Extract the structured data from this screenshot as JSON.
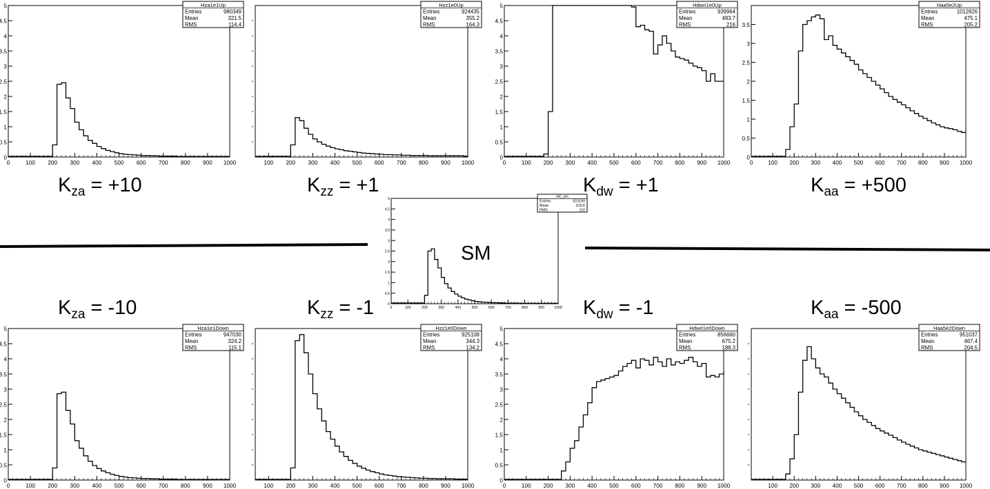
{
  "labels": {
    "up": [
      {
        "k": "K",
        "sub": "za",
        "rest": " = +10"
      },
      {
        "k": "K",
        "sub": "zz",
        "rest": " = +1"
      },
      {
        "k": "K",
        "sub": "dw",
        "rest": " = +1"
      },
      {
        "k": "K",
        "sub": "aa",
        "rest": " = +500"
      }
    ],
    "down": [
      {
        "k": "K",
        "sub": "za",
        "rest": " = -10"
      },
      {
        "k": "K",
        "sub": "zz",
        "rest": " = -1"
      },
      {
        "k": "K",
        "sub": "dw",
        "rest": " = -1"
      },
      {
        "k": "K",
        "sub": "aa",
        "rest": " = -500"
      }
    ],
    "sm": "SM"
  },
  "chart_data": [
    {
      "type": "bar",
      "title": "Hza1e1Up",
      "stats": {
        "Entries": "980349",
        "Mean": "321.5",
        "RMS": "114.4"
      },
      "xlim": [
        0,
        1000
      ],
      "ylim": [
        0,
        5
      ],
      "xticks": [
        0,
        100,
        200,
        300,
        400,
        500,
        600,
        700,
        800,
        900,
        1000
      ],
      "yticks": [
        0,
        0.5,
        1,
        1.5,
        2,
        2.5,
        3,
        3.5,
        4,
        4.5,
        5
      ],
      "bin_edges_start": 200,
      "bin_width": 20,
      "values": [
        0.4,
        2.4,
        2.45,
        1.95,
        1.6,
        1.15,
        0.9,
        0.7,
        0.55,
        0.45,
        0.35,
        0.28,
        0.22,
        0.18,
        0.14,
        0.11,
        0.09,
        0.08,
        0.07,
        0.06,
        0.05,
        0.05,
        0.04,
        0.04,
        0.03,
        0.03,
        0.03,
        0.03,
        0.02,
        0.02,
        0.02,
        0.02,
        0.02,
        0.02,
        0.02,
        0.02,
        0.02,
        0.02,
        0.02,
        0.02
      ]
    },
    {
      "type": "bar",
      "title": "Hzz1e0Up",
      "stats": {
        "Entries": "924435",
        "Mean": "355.2",
        "RMS": "164.3"
      },
      "xlim": [
        40,
        1000
      ],
      "ylim": [
        0,
        5
      ],
      "xticks": [
        100,
        200,
        300,
        400,
        500,
        600,
        700,
        800,
        900,
        1000
      ],
      "yticks": [],
      "bin_edges_start": 200,
      "bin_width": 20,
      "values": [
        0.4,
        1.3,
        1.2,
        0.95,
        0.75,
        0.6,
        0.5,
        0.42,
        0.36,
        0.31,
        0.27,
        0.24,
        0.21,
        0.19,
        0.17,
        0.15,
        0.13,
        0.12,
        0.11,
        0.1,
        0.09,
        0.08,
        0.08,
        0.07,
        0.07,
        0.06,
        0.06,
        0.05,
        0.05,
        0.05,
        0.05,
        0.04,
        0.04,
        0.04,
        0.04,
        0.04,
        0.04,
        0.04,
        0.04,
        0.03
      ]
    },
    {
      "type": "bar",
      "title": "Hdwri1e0Up",
      "stats": {
        "Entries": "939964",
        "Mean": "483.7",
        "RMS": "216"
      },
      "xlim": [
        0,
        1000
      ],
      "ylim": [
        0,
        5
      ],
      "xticks": [
        0,
        100,
        200,
        300,
        400,
        500,
        600,
        700,
        800,
        900,
        1000
      ],
      "yticks": [
        0,
        0.5,
        1,
        1.5,
        2,
        2.5,
        3,
        3.5,
        4,
        4.5,
        5
      ],
      "bin_edges_start": 180,
      "bin_width": 20,
      "values": [
        0.1,
        1.5,
        5.2,
        5.2,
        5.2,
        5.2,
        5.2,
        5.2,
        5.2,
        5.2,
        5.2,
        5.2,
        5.2,
        5.2,
        5.2,
        5.2,
        5.2,
        5.2,
        5.2,
        5.0,
        4.95,
        4.3,
        4.35,
        4.2,
        4.15,
        3.4,
        3.7,
        4.0,
        3.75,
        3.5,
        3.3,
        3.25,
        3.2,
        3.1,
        3.0,
        2.95,
        2.85,
        2.5,
        2.75,
        2.5,
        2.5
      ]
    },
    {
      "type": "bar",
      "title": "Haa5e2Up",
      "stats": {
        "Entries": "1012826",
        "Mean": "475.1",
        "RMS": "205.2"
      },
      "xlim": [
        0,
        1000
      ],
      "ylim": [
        0,
        4
      ],
      "xticks": [
        0,
        100,
        200,
        300,
        400,
        500,
        600,
        700,
        800,
        900,
        1000
      ],
      "yticks": [
        0,
        0.5,
        1,
        1.5,
        2,
        2.5,
        3,
        3.5
      ],
      "bin_edges_start": 160,
      "bin_width": 20,
      "values": [
        0.2,
        0.8,
        1.4,
        2.8,
        3.5,
        3.6,
        3.7,
        3.75,
        3.65,
        3.1,
        3.2,
        2.95,
        2.85,
        2.75,
        2.65,
        2.55,
        2.45,
        2.3,
        2.2,
        2.1,
        2.0,
        1.9,
        1.8,
        1.7,
        1.6,
        1.52,
        1.45,
        1.38,
        1.3,
        1.22,
        1.15,
        1.08,
        1.02,
        0.96,
        0.9,
        0.85,
        0.8,
        0.77,
        0.75,
        0.72,
        0.68,
        0.65
      ]
    },
    {
      "type": "bar",
      "title": "HC_sm",
      "stats": {
        "Entries": "923199",
        "Mean": "319.6",
        "RMS": "110"
      },
      "xlim": [
        0,
        1000
      ],
      "ylim": [
        0,
        5
      ],
      "xticks": [
        0,
        100,
        200,
        300,
        400,
        500,
        600,
        700,
        800,
        900,
        1000
      ],
      "yticks": [
        0,
        0.5,
        1,
        1.5,
        2,
        2.5,
        3,
        3.5,
        4,
        4.5,
        5
      ],
      "bin_edges_start": 200,
      "bin_width": 20,
      "values": [
        0.4,
        2.5,
        2.6,
        2.1,
        1.7,
        1.25,
        0.95,
        0.75,
        0.58,
        0.46,
        0.36,
        0.28,
        0.22,
        0.18,
        0.14,
        0.11,
        0.09,
        0.08,
        0.07,
        0.06,
        0.05,
        0.05,
        0.04,
        0.04,
        0.03,
        0.03,
        0.03,
        0.03,
        0.02,
        0.02,
        0.02,
        0.02,
        0.02,
        0.02,
        0.02,
        0.02,
        0.02,
        0.02,
        0.02,
        0.02
      ]
    },
    {
      "type": "bar",
      "title": "Hza1e1Down",
      "stats": {
        "Entries": "947030",
        "Mean": "324.2",
        "RMS": "115.1"
      },
      "xlim": [
        0,
        1000
      ],
      "ylim": [
        0,
        5
      ],
      "xticks": [
        0,
        100,
        200,
        300,
        400,
        500,
        600,
        700,
        800,
        900,
        1000
      ],
      "yticks": [
        0,
        0.5,
        1,
        1.5,
        2,
        2.5,
        3,
        3.5,
        4,
        4.5,
        5
      ],
      "bin_edges_start": 200,
      "bin_width": 20,
      "values": [
        0.4,
        2.85,
        2.9,
        2.3,
        1.85,
        1.3,
        1.05,
        0.8,
        0.62,
        0.48,
        0.38,
        0.3,
        0.24,
        0.19,
        0.15,
        0.12,
        0.1,
        0.08,
        0.07,
        0.06,
        0.05,
        0.05,
        0.04,
        0.04,
        0.03,
        0.03,
        0.03,
        0.03,
        0.02,
        0.02,
        0.02,
        0.02,
        0.02,
        0.02,
        0.02,
        0.02,
        0.02,
        0.02,
        0.02,
        0.02
      ]
    },
    {
      "type": "bar",
      "title": "Hzz1e0Down",
      "stats": {
        "Entries": "925108",
        "Mean": "344.3",
        "RMS": "134.2"
      },
      "xlim": [
        40,
        1000
      ],
      "ylim": [
        0,
        5
      ],
      "xticks": [
        100,
        200,
        300,
        400,
        500,
        600,
        700,
        800,
        900,
        1000
      ],
      "yticks": [],
      "bin_edges_start": 200,
      "bin_width": 20,
      "values": [
        0.4,
        4.6,
        4.8,
        4.2,
        3.5,
        2.85,
        2.35,
        1.95,
        1.6,
        1.35,
        1.12,
        0.93,
        0.78,
        0.65,
        0.55,
        0.46,
        0.39,
        0.33,
        0.28,
        0.24,
        0.2,
        0.17,
        0.15,
        0.13,
        0.11,
        0.1,
        0.09,
        0.08,
        0.07,
        0.06,
        0.06,
        0.05,
        0.05,
        0.04,
        0.04,
        0.04,
        0.04,
        0.03,
        0.03,
        0.03
      ]
    },
    {
      "type": "bar",
      "title": "Hdwri1e0Down",
      "stats": {
        "Entries": "856660",
        "Mean": "675.2",
        "RMS": "188.3"
      },
      "xlim": [
        0,
        1000
      ],
      "ylim": [
        0,
        5
      ],
      "xticks": [
        0,
        100,
        200,
        300,
        400,
        500,
        600,
        700,
        800,
        900,
        1000
      ],
      "yticks": [
        0,
        0.5,
        1,
        1.5,
        2,
        2.5,
        3,
        3.5,
        4,
        4.5,
        5
      ],
      "bin_edges_start": 260,
      "bin_width": 20,
      "values": [
        0.3,
        0.6,
        1.05,
        1.3,
        1.75,
        2.15,
        2.55,
        3.05,
        3.25,
        3.3,
        3.35,
        3.4,
        3.45,
        3.6,
        3.75,
        3.85,
        3.95,
        3.7,
        4.0,
        3.95,
        3.8,
        4.05,
        3.9,
        3.75,
        4.0,
        3.8,
        3.9,
        3.85,
        3.95,
        4.05,
        3.9,
        3.75,
        3.85,
        3.4,
        3.45,
        3.4,
        3.5,
        3.6
      ]
    },
    {
      "type": "bar",
      "title": "Haa5e2Down",
      "stats": {
        "Entries": "951037",
        "Mean": "467.4",
        "RMS": "204.5"
      },
      "xlim": [
        0,
        1000
      ],
      "ylim": [
        0,
        5
      ],
      "xticks": [
        100,
        200,
        300,
        400,
        500,
        600,
        700,
        800,
        900,
        1000
      ],
      "yticks": [],
      "bin_edges_start": 160,
      "bin_width": 20,
      "values": [
        0.2,
        0.7,
        1.5,
        2.9,
        3.95,
        4.4,
        4.0,
        3.7,
        3.5,
        3.4,
        3.2,
        3.0,
        2.85,
        2.7,
        2.55,
        2.4,
        2.25,
        2.12,
        2.0,
        1.9,
        1.8,
        1.7,
        1.62,
        1.55,
        1.48,
        1.4,
        1.32,
        1.25,
        1.18,
        1.12,
        1.06,
        1.0,
        0.96,
        0.92,
        0.88,
        0.84,
        0.8,
        0.76,
        0.72,
        0.68,
        0.64,
        0.6
      ]
    }
  ]
}
